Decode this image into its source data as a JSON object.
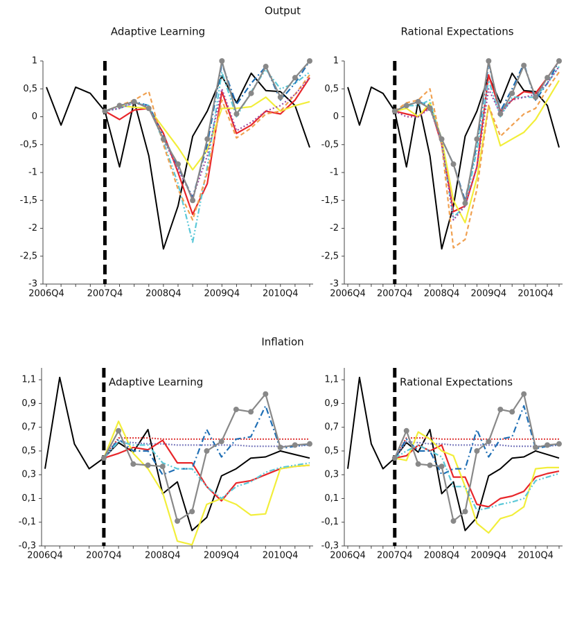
{
  "section_titles": [
    "Output",
    "Inflation"
  ],
  "chart_data": [
    {
      "type": "line",
      "title": "Adaptive Learning",
      "categories": [
        "2006Q4",
        null,
        null,
        null,
        "2007Q4",
        null,
        null,
        null,
        "2008Q4",
        null,
        null,
        null,
        "2009Q4",
        null,
        null,
        null,
        "2010Q4",
        null,
        null
      ],
      "ylim": [
        -3,
        1
      ],
      "yticks": [
        1,
        {
          "value": 0.5,
          "label": "0,5"
        },
        0,
        {
          "value": -0.5,
          "label": "-0,5"
        },
        -1,
        {
          "value": -1.5,
          "label": "-1,5"
        },
        -2,
        {
          "value": -2.5,
          "label": "-2,5"
        },
        -3
      ],
      "series": [
        {
          "color": "#000000",
          "values": [
            0.53,
            -0.15,
            0.53,
            0.42,
            0.1,
            -0.9,
            0.28,
            -0.7,
            -2.37,
            -1.6,
            -0.35,
            0.1,
            0.73,
            0.25,
            0.78,
            0.47,
            0.45,
            0.2,
            -0.55
          ]
        },
        {
          "color": "#e8262a",
          "values": [
            null,
            null,
            null,
            null,
            0.1,
            -0.05,
            0.12,
            0.15,
            -0.3,
            -1.0,
            -1.75,
            -1.2,
            0.45,
            -0.3,
            -0.15,
            0.1,
            0.05,
            0.3,
            0.7
          ]
        },
        {
          "color": "#f2ee3a",
          "values": [
            null,
            null,
            null,
            null,
            0.1,
            0.2,
            0.17,
            0.15,
            -0.2,
            -0.55,
            -0.95,
            -0.6,
            0.15,
            0.15,
            0.18,
            0.35,
            0.1,
            0.2,
            0.27
          ]
        },
        {
          "color": "#1f6fb5",
          "dash": "9 4 2 4",
          "values": [
            null,
            null,
            null,
            null,
            0.1,
            0.2,
            0.27,
            0.2,
            -0.35,
            -0.9,
            -1.45,
            -0.5,
            0.95,
            0.22,
            0.6,
            0.9,
            0.3,
            0.6,
            1.0
          ]
        },
        {
          "color": "#5bc8d8",
          "dash": "8 3 2 3 2 3",
          "values": [
            null,
            null,
            null,
            null,
            0.1,
            0.15,
            0.25,
            0.2,
            -0.45,
            -1.2,
            -2.25,
            -0.9,
            0.8,
            0.0,
            0.45,
            0.85,
            0.5,
            0.6,
            0.8
          ]
        },
        {
          "color": "#f0a050",
          "dash": "6 4",
          "values": [
            null,
            null,
            null,
            null,
            0.1,
            0.2,
            0.3,
            0.45,
            -0.5,
            -1.3,
            -1.85,
            -1.0,
            0.3,
            -0.38,
            -0.2,
            0.05,
            0.1,
            0.4,
            0.75
          ]
        },
        {
          "color": "#9b4aa0",
          "dash": "2 3",
          "values": [
            null,
            null,
            null,
            null,
            0.1,
            0.15,
            0.25,
            0.18,
            -0.4,
            -0.95,
            -1.45,
            -0.7,
            0.5,
            -0.25,
            -0.1,
            0.1,
            0.2,
            0.4,
            0.7
          ]
        },
        {
          "color": "#888888",
          "markers": true,
          "values": [
            null,
            null,
            null,
            null,
            0.1,
            0.2,
            0.27,
            0.15,
            -0.4,
            -0.85,
            -1.5,
            -0.4,
            1.0,
            0.05,
            0.42,
            0.9,
            0.35,
            0.7,
            1.0
          ]
        }
      ]
    },
    {
      "type": "line",
      "title": "Rational Expectations",
      "categories": [
        "2006Q4",
        null,
        null,
        null,
        "2007Q4",
        null,
        null,
        null,
        "2008Q4",
        null,
        null,
        null,
        "2009Q4",
        null,
        null,
        null,
        "2010Q4",
        null,
        null
      ],
      "ylim": [
        -3,
        1
      ],
      "yticks": [
        1,
        {
          "value": 0.5,
          "label": "0,5"
        },
        0,
        {
          "value": -0.5,
          "label": "-0,5"
        },
        -1,
        {
          "value": -1.5,
          "label": "-1,5"
        },
        -2,
        {
          "value": -2.5,
          "label": "-2,5"
        },
        -3
      ],
      "series": [
        {
          "color": "#000000",
          "values": [
            0.53,
            -0.15,
            0.53,
            0.42,
            0.1,
            -0.9,
            0.28,
            -0.7,
            -2.37,
            -1.6,
            -0.35,
            0.1,
            0.73,
            0.25,
            0.78,
            0.47,
            0.45,
            0.2,
            -0.55
          ]
        },
        {
          "color": "#e8262a",
          "values": [
            null,
            null,
            null,
            null,
            0.1,
            0.05,
            0.0,
            0.2,
            -0.5,
            -1.7,
            -1.6,
            -0.9,
            0.75,
            0.1,
            0.3,
            0.45,
            0.42,
            0.7,
            1.0
          ]
        },
        {
          "color": "#f2ee3a",
          "values": [
            null,
            null,
            null,
            null,
            0.1,
            0.15,
            0.0,
            0.25,
            -0.4,
            -1.5,
            -1.9,
            -1.1,
            0.2,
            -0.52,
            -0.4,
            -0.28,
            -0.05,
            0.3,
            0.65
          ]
        },
        {
          "color": "#1f6fb5",
          "dash": "9 4 2 4",
          "values": [
            null,
            null,
            null,
            null,
            0.1,
            0.2,
            0.27,
            0.2,
            -0.4,
            -0.85,
            -1.5,
            -0.5,
            0.95,
            0.1,
            0.5,
            0.95,
            0.3,
            0.6,
            1.0
          ]
        },
        {
          "color": "#5bc8d8",
          "dash": "8 3 2 3 2 3",
          "values": [
            null,
            null,
            null,
            null,
            0.1,
            0.2,
            0.2,
            0.3,
            -0.5,
            -1.8,
            -1.6,
            -0.6,
            0.65,
            0.0,
            0.35,
            0.35,
            0.35,
            0.6,
            0.9
          ]
        },
        {
          "color": "#f0a050",
          "dash": "6 4",
          "values": [
            null,
            null,
            null,
            null,
            0.1,
            0.25,
            0.3,
            0.5,
            -0.5,
            -2.35,
            -2.2,
            -1.3,
            0.2,
            -0.35,
            -0.15,
            0.05,
            0.15,
            0.5,
            0.8
          ]
        },
        {
          "color": "#9b4aa0",
          "dash": "2 3",
          "values": [
            null,
            null,
            null,
            null,
            0.1,
            0.0,
            0.0,
            0.15,
            -0.45,
            -1.85,
            -1.6,
            -0.9,
            0.5,
            0.05,
            0.3,
            0.35,
            0.4,
            0.6,
            0.9
          ]
        },
        {
          "color": "#888888",
          "markers": true,
          "values": [
            null,
            null,
            null,
            null,
            0.1,
            0.2,
            0.27,
            0.15,
            -0.4,
            -0.85,
            -1.55,
            -0.4,
            1.0,
            0.05,
            0.42,
            0.92,
            0.35,
            0.7,
            1.0
          ]
        }
      ]
    },
    {
      "type": "line",
      "title": "Adaptive Learning",
      "categories": [
        "2006Q4",
        null,
        null,
        null,
        "2007Q4",
        null,
        null,
        null,
        "2008Q4",
        null,
        null,
        null,
        "2009Q4",
        null,
        null,
        null,
        "2010Q4",
        null,
        null
      ],
      "ylim": [
        -0.3,
        1.2
      ],
      "yticks": [
        {
          "value": 1.1,
          "label": "1,1"
        },
        {
          "value": 0.9,
          "label": "0,9"
        },
        {
          "value": 0.7,
          "label": "0,7"
        },
        {
          "value": 0.5,
          "label": "0,5"
        },
        {
          "value": 0.3,
          "label": "0,3"
        },
        {
          "value": 0.1,
          "label": "0,1"
        },
        {
          "value": -0.1,
          "label": "-0,1"
        },
        {
          "value": -0.3,
          "label": "-0,3"
        }
      ],
      "series": [
        {
          "color": "#000000",
          "values": [
            0.35,
            1.12,
            0.56,
            0.35,
            0.44,
            0.57,
            0.49,
            0.68,
            0.14,
            0.24,
            -0.17,
            -0.06,
            0.29,
            0.35,
            0.44,
            0.45,
            0.5,
            0.47,
            0.44
          ]
        },
        {
          "color": "#e04040",
          "dash": "2 2",
          "values": [
            null,
            null,
            null,
            null,
            0.44,
            0.61,
            0.61,
            0.61,
            0.6,
            0.6,
            0.6,
            0.6,
            0.6,
            0.6,
            0.6,
            0.6,
            0.6,
            0.6,
            0.6
          ]
        },
        {
          "color": "#8080c0",
          "dash": "2 2",
          "values": [
            null,
            null,
            null,
            null,
            0.44,
            0.58,
            0.57,
            0.56,
            0.56,
            0.55,
            0.55,
            0.55,
            0.55,
            0.55,
            0.54,
            0.54,
            0.54,
            0.54,
            0.55
          ]
        },
        {
          "color": "#e8262a",
          "values": [
            null,
            null,
            null,
            null,
            0.44,
            0.48,
            0.53,
            0.51,
            0.59,
            0.4,
            0.4,
            0.2,
            0.08,
            0.23,
            0.25,
            0.3,
            0.35,
            0.37,
            0.38
          ]
        },
        {
          "color": "#f2ee3a",
          "values": [
            null,
            null,
            null,
            null,
            0.44,
            0.75,
            0.48,
            0.35,
            0.15,
            -0.26,
            -0.29,
            0.05,
            0.1,
            0.05,
            -0.04,
            -0.03,
            0.35,
            0.37,
            0.38
          ]
        },
        {
          "color": "#1f6fb5",
          "dash": "9 4 2 4",
          "values": [
            null,
            null,
            null,
            null,
            0.44,
            0.6,
            0.5,
            0.5,
            0.3,
            0.35,
            0.35,
            0.68,
            0.45,
            0.6,
            0.62,
            0.88,
            0.52,
            0.54,
            0.56
          ]
        },
        {
          "color": "#5bc8d8",
          "dash": "8 3 2 3 2 3",
          "values": [
            null,
            null,
            null,
            null,
            0.44,
            0.58,
            0.55,
            0.55,
            0.4,
            0.35,
            0.35,
            0.2,
            0.1,
            0.2,
            0.24,
            0.32,
            0.36,
            0.38,
            0.4
          ]
        },
        {
          "color": "#888888",
          "markers": true,
          "values": [
            null,
            null,
            null,
            null,
            0.44,
            0.67,
            0.39,
            0.38,
            0.37,
            -0.09,
            -0.01,
            0.5,
            0.58,
            0.85,
            0.83,
            0.98,
            0.53,
            0.55,
            0.56
          ]
        }
      ]
    },
    {
      "type": "line",
      "title": "Rational Expectations",
      "categories": [
        "2006Q4",
        null,
        null,
        null,
        "2007Q4",
        null,
        null,
        null,
        "2008Q4",
        null,
        null,
        null,
        "2009Q4",
        null,
        null,
        null,
        "2010Q4",
        null,
        null
      ],
      "ylim": [
        -0.3,
        1.2
      ],
      "yticks": [
        {
          "value": 1.1,
          "label": "1,1"
        },
        {
          "value": 0.9,
          "label": "0,9"
        },
        {
          "value": 0.7,
          "label": "0,7"
        },
        {
          "value": 0.5,
          "label": "0,5"
        },
        {
          "value": 0.3,
          "label": "0,3"
        },
        {
          "value": 0.1,
          "label": "0,1"
        },
        {
          "value": -0.1,
          "label": "-0,1"
        },
        {
          "value": -0.3,
          "label": "-0,3"
        }
      ],
      "series": [
        {
          "color": "#000000",
          "values": [
            0.35,
            1.12,
            0.56,
            0.35,
            0.44,
            0.57,
            0.49,
            0.68,
            0.14,
            0.24,
            -0.17,
            -0.06,
            0.29,
            0.35,
            0.44,
            0.45,
            0.5,
            0.47,
            0.44
          ]
        },
        {
          "color": "#e04040",
          "dash": "2 2",
          "values": [
            null,
            null,
            null,
            null,
            0.44,
            0.61,
            0.61,
            0.61,
            0.6,
            0.6,
            0.6,
            0.6,
            0.6,
            0.6,
            0.6,
            0.6,
            0.6,
            0.6,
            0.6
          ]
        },
        {
          "color": "#8080c0",
          "dash": "2 2",
          "values": [
            null,
            null,
            null,
            null,
            0.44,
            0.58,
            0.57,
            0.56,
            0.56,
            0.55,
            0.55,
            0.55,
            0.55,
            0.55,
            0.54,
            0.54,
            0.54,
            0.54,
            0.55
          ]
        },
        {
          "color": "#e8262a",
          "values": [
            null,
            null,
            null,
            null,
            0.44,
            0.46,
            0.55,
            0.5,
            0.55,
            0.28,
            0.28,
            0.05,
            0.03,
            0.1,
            0.12,
            0.16,
            0.28,
            0.31,
            0.33
          ]
        },
        {
          "color": "#f2ee3a",
          "values": [
            null,
            null,
            null,
            null,
            0.44,
            0.42,
            0.66,
            0.6,
            0.5,
            0.46,
            0.2,
            -0.11,
            -0.19,
            -0.07,
            -0.04,
            0.03,
            0.35,
            0.36,
            0.36
          ]
        },
        {
          "color": "#1f6fb5",
          "dash": "9 4 2 4",
          "values": [
            null,
            null,
            null,
            null,
            0.44,
            0.6,
            0.5,
            0.5,
            0.3,
            0.35,
            0.35,
            0.68,
            0.45,
            0.6,
            0.62,
            0.88,
            0.52,
            0.54,
            0.56
          ]
        },
        {
          "color": "#5bc8d8",
          "dash": "8 3 2 3 2 3",
          "values": [
            null,
            null,
            null,
            null,
            0.44,
            0.5,
            0.55,
            0.5,
            0.45,
            0.2,
            0.2,
            0.0,
            0.02,
            0.05,
            0.07,
            0.1,
            0.25,
            0.28,
            0.31
          ]
        },
        {
          "color": "#888888",
          "markers": true,
          "values": [
            null,
            null,
            null,
            null,
            0.44,
            0.67,
            0.39,
            0.38,
            0.37,
            -0.09,
            -0.01,
            0.5,
            0.58,
            0.85,
            0.83,
            0.98,
            0.53,
            0.55,
            0.56
          ]
        }
      ]
    }
  ]
}
